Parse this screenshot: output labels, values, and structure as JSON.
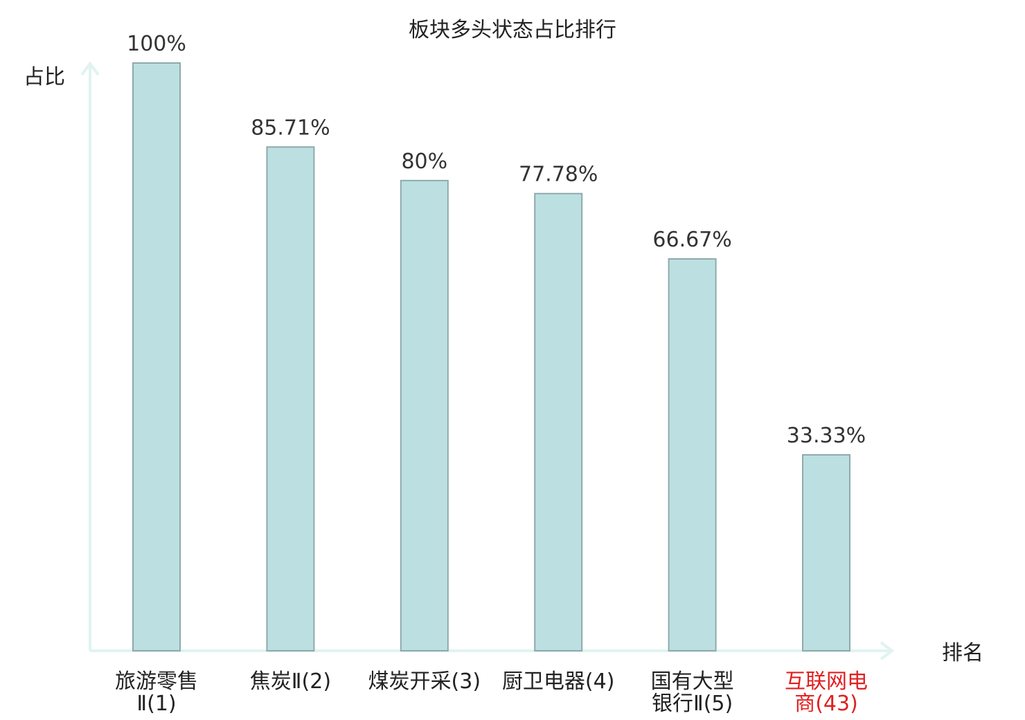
{
  "chart_data": {
    "type": "bar",
    "title": "板块多头状态占比排行",
    "ylabel": "占比",
    "xlabel": "排名",
    "ylim": [
      0,
      100
    ],
    "grid": false,
    "categories": [
      [
        "旅游零售",
        "Ⅱ(1)"
      ],
      [
        "焦炭Ⅱ(2)"
      ],
      [
        "煤炭开采(3)"
      ],
      [
        "厨卫电器(4)"
      ],
      [
        "国有大型",
        "银行Ⅱ(5)"
      ],
      [
        "互联网电",
        "商(43)"
      ]
    ],
    "values": [
      100,
      85.71,
      80,
      77.78,
      66.67,
      33.33
    ],
    "value_labels": [
      "100%",
      "85.71%",
      "80%",
      "77.78%",
      "66.67%",
      "33.33%"
    ],
    "highlight_index": 5,
    "colors": {
      "bar_fill": "#bce0e2",
      "bar_stroke": "#8fa9ab",
      "axis": "#e0f3f0",
      "text": "#222222",
      "highlight_text": "#e02020"
    }
  }
}
